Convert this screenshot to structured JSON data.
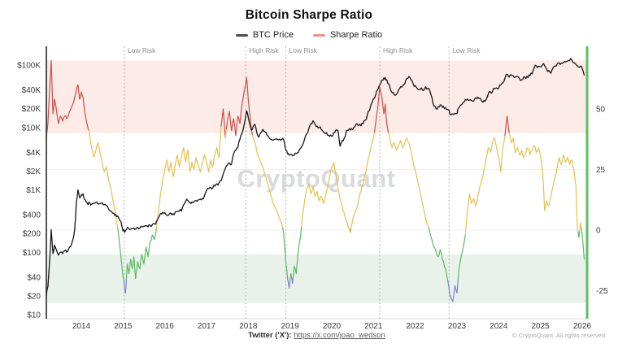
{
  "title": "Bitcoin Sharpe Ratio",
  "legend": {
    "items": [
      {
        "label": "BTC Price",
        "color": "#4d4d4d"
      },
      {
        "label": "Sharpe Ratio",
        "color": "#e8938a"
      }
    ]
  },
  "watermark": "CryptoQuant",
  "footer": {
    "twitter_prefix": "Twitter ('X'):",
    "twitter_link": "https://x.com/joao_wedson",
    "copyright": "© CryptoQuant. All rights reserved"
  },
  "chart_data": {
    "type": "line",
    "title": "Bitcoin Sharpe Ratio",
    "x_axis": {
      "ticks": [
        2014,
        2015,
        2016,
        2017,
        2018,
        2019,
        2020,
        2021,
        2022,
        2023,
        2024,
        2025,
        2026
      ],
      "range": [
        2013.16,
        2026.13
      ]
    },
    "left_axis": {
      "name": "BTC Price (USD, log scale)",
      "ticks": [
        {
          "label": "$100K",
          "value": 100000
        },
        {
          "label": "$40K",
          "value": 40000
        },
        {
          "label": "$20K",
          "value": 20000
        },
        {
          "label": "$10K",
          "value": 10000
        },
        {
          "label": "$4K",
          "value": 4000
        },
        {
          "label": "$2K",
          "value": 2000
        },
        {
          "label": "$1K",
          "value": 1000
        },
        {
          "label": "$400",
          "value": 400
        },
        {
          "label": "$200",
          "value": 200
        },
        {
          "label": "$100",
          "value": 100
        },
        {
          "label": "$40",
          "value": 40
        },
        {
          "label": "$20",
          "value": 20
        },
        {
          "label": "$10",
          "value": 10
        }
      ]
    },
    "right_axis": {
      "name": "Sharpe Ratio",
      "ticks": [
        50,
        25,
        0,
        -25
      ],
      "range": [
        -36,
        76
      ]
    },
    "bands": [
      {
        "name": "high-risk-zone",
        "from": 40,
        "to": 70,
        "color": "#fcebe6"
      },
      {
        "name": "low-risk-zone",
        "from": -30,
        "to": -10,
        "color": "#e9f2ea"
      }
    ],
    "annotations": [
      {
        "x": 2015.03,
        "label": "Low Risk"
      },
      {
        "x": 2017.94,
        "label": "High Risk"
      },
      {
        "x": 2018.9,
        "label": "Low Risk"
      },
      {
        "x": 2021.15,
        "label": "High Risk"
      },
      {
        "x": 2022.81,
        "label": "Low Risk"
      }
    ],
    "sharpe_color_rules": {
      "red_above": 40,
      "yellow_above": 0,
      "green_above": -20,
      "red": "#cf4c46",
      "yellow": "#e5c14d",
      "green": "#5cb763",
      "blue": "#7e82d8"
    },
    "series_meta": [
      {
        "name": "BTC Price",
        "axis": "left",
        "scale": "log",
        "color": "#161616"
      },
      {
        "name": "Sharpe Ratio",
        "axis": "right",
        "scale": "linear",
        "color": "multi"
      }
    ],
    "points_format": [
      "year",
      "btc_price_usd",
      "sharpe_ratio"
    ],
    "points": [
      [
        2013.16,
        20,
        36
      ],
      [
        2013.2,
        28,
        44
      ],
      [
        2013.24,
        70,
        58
      ],
      [
        2013.28,
        230,
        70
      ],
      [
        2013.32,
        95,
        48
      ],
      [
        2013.36,
        130,
        54
      ],
      [
        2013.4,
        110,
        50
      ],
      [
        2013.45,
        90,
        44
      ],
      [
        2013.5,
        100,
        47
      ],
      [
        2013.55,
        95,
        45
      ],
      [
        2013.6,
        105,
        47
      ],
      [
        2013.65,
        100,
        46
      ],
      [
        2013.7,
        115,
        48
      ],
      [
        2013.75,
        125,
        50
      ],
      [
        2013.8,
        160,
        52
      ],
      [
        2013.84,
        230,
        55
      ],
      [
        2013.88,
        600,
        58
      ],
      [
        2013.92,
        1000,
        60
      ],
      [
        2013.96,
        750,
        54
      ],
      [
        2014.0,
        830,
        57
      ],
      [
        2014.04,
        860,
        55
      ],
      [
        2014.08,
        700,
        49
      ],
      [
        2014.12,
        630,
        45
      ],
      [
        2014.16,
        580,
        42
      ],
      [
        2014.2,
        620,
        39
      ],
      [
        2014.25,
        590,
        34
      ],
      [
        2014.3,
        610,
        30
      ],
      [
        2014.35,
        630,
        33
      ],
      [
        2014.4,
        590,
        36
      ],
      [
        2014.45,
        600,
        32
      ],
      [
        2014.5,
        620,
        28
      ],
      [
        2014.55,
        580,
        24
      ],
      [
        2014.6,
        560,
        26
      ],
      [
        2014.65,
        500,
        21
      ],
      [
        2014.7,
        460,
        18
      ],
      [
        2014.75,
        420,
        13
      ],
      [
        2014.8,
        390,
        8
      ],
      [
        2014.85,
        370,
        3
      ],
      [
        2014.9,
        350,
        -3
      ],
      [
        2014.95,
        310,
        -11
      ],
      [
        2015.0,
        220,
        -19
      ],
      [
        2015.03,
        215,
        -23
      ],
      [
        2015.06,
        225,
        -26
      ],
      [
        2015.1,
        250,
        -14
      ],
      [
        2015.14,
        240,
        -18
      ],
      [
        2015.18,
        235,
        -12
      ],
      [
        2015.22,
        240,
        -16
      ],
      [
        2015.26,
        245,
        -11
      ],
      [
        2015.3,
        235,
        -20
      ],
      [
        2015.35,
        250,
        -13
      ],
      [
        2015.4,
        245,
        -16
      ],
      [
        2015.45,
        255,
        -10
      ],
      [
        2015.5,
        260,
        -14
      ],
      [
        2015.55,
        265,
        -7
      ],
      [
        2015.6,
        255,
        -11
      ],
      [
        2015.65,
        270,
        -5
      ],
      [
        2015.7,
        275,
        -2
      ],
      [
        2015.75,
        285,
        -4
      ],
      [
        2015.8,
        310,
        1
      ],
      [
        2015.85,
        360,
        8
      ],
      [
        2015.9,
        420,
        15
      ],
      [
        2015.95,
        440,
        21
      ],
      [
        2016.0,
        430,
        25
      ],
      [
        2016.05,
        390,
        29
      ],
      [
        2016.1,
        400,
        24
      ],
      [
        2016.15,
        420,
        28
      ],
      [
        2016.2,
        415,
        22
      ],
      [
        2016.25,
        440,
        27
      ],
      [
        2016.3,
        450,
        31
      ],
      [
        2016.35,
        460,
        26
      ],
      [
        2016.4,
        455,
        30
      ],
      [
        2016.45,
        580,
        34
      ],
      [
        2016.5,
        660,
        28
      ],
      [
        2016.55,
        680,
        33
      ],
      [
        2016.6,
        620,
        24
      ],
      [
        2016.65,
        640,
        28
      ],
      [
        2016.7,
        650,
        25
      ],
      [
        2016.75,
        670,
        30
      ],
      [
        2016.8,
        690,
        27
      ],
      [
        2016.85,
        710,
        24
      ],
      [
        2016.9,
        730,
        28
      ],
      [
        2016.95,
        800,
        31
      ],
      [
        2017.0,
        980,
        28
      ],
      [
        2017.05,
        1050,
        24
      ],
      [
        2017.1,
        1100,
        29
      ],
      [
        2017.15,
        1080,
        26
      ],
      [
        2017.2,
        1150,
        31
      ],
      [
        2017.25,
        1250,
        34
      ],
      [
        2017.3,
        1300,
        30
      ],
      [
        2017.35,
        1400,
        43
      ],
      [
        2017.4,
        1800,
        50
      ],
      [
        2017.45,
        2200,
        38
      ],
      [
        2017.5,
        2500,
        45
      ],
      [
        2017.55,
        2700,
        49
      ],
      [
        2017.6,
        2600,
        41
      ],
      [
        2017.65,
        3800,
        46
      ],
      [
        2017.7,
        4300,
        39
      ],
      [
        2017.75,
        4800,
        47
      ],
      [
        2017.8,
        6500,
        44
      ],
      [
        2017.85,
        8000,
        52
      ],
      [
        2017.9,
        11000,
        57
      ],
      [
        2017.96,
        18500,
        63
      ],
      [
        2018.0,
        14500,
        54
      ],
      [
        2018.04,
        11000,
        47
      ],
      [
        2018.08,
        9000,
        41
      ],
      [
        2018.12,
        10500,
        38
      ],
      [
        2018.16,
        11200,
        36
      ],
      [
        2018.2,
        8500,
        33
      ],
      [
        2018.25,
        7000,
        30
      ],
      [
        2018.3,
        8200,
        28
      ],
      [
        2018.35,
        9300,
        26
      ],
      [
        2018.4,
        8500,
        23
      ],
      [
        2018.45,
        7500,
        20
      ],
      [
        2018.5,
        6800,
        17
      ],
      [
        2018.55,
        6400,
        14
      ],
      [
        2018.6,
        6300,
        11
      ],
      [
        2018.65,
        6500,
        9
      ],
      [
        2018.7,
        6400,
        7
      ],
      [
        2018.75,
        6500,
        5
      ],
      [
        2018.8,
        6400,
        3
      ],
      [
        2018.85,
        6300,
        -2
      ],
      [
        2018.9,
        4300,
        -13
      ],
      [
        2018.94,
        3800,
        -20
      ],
      [
        2018.98,
        3600,
        -24
      ],
      [
        2019.02,
        3700,
        -18
      ],
      [
        2019.06,
        3500,
        -22
      ],
      [
        2019.1,
        3600,
        -15
      ],
      [
        2019.15,
        3800,
        -18
      ],
      [
        2019.2,
        4000,
        -8
      ],
      [
        2019.25,
        4600,
        -3
      ],
      [
        2019.3,
        5200,
        6
      ],
      [
        2019.35,
        6500,
        12
      ],
      [
        2019.4,
        7900,
        17
      ],
      [
        2019.45,
        9500,
        19
      ],
      [
        2019.5,
        11500,
        15
      ],
      [
        2019.55,
        12800,
        18
      ],
      [
        2019.6,
        11200,
        14
      ],
      [
        2019.65,
        10500,
        16
      ],
      [
        2019.7,
        10000,
        12
      ],
      [
        2019.75,
        9200,
        14
      ],
      [
        2019.8,
        8500,
        11
      ],
      [
        2019.85,
        8000,
        14
      ],
      [
        2019.9,
        7500,
        17
      ],
      [
        2019.95,
        7200,
        22
      ],
      [
        2020.0,
        7200,
        26
      ],
      [
        2020.05,
        8300,
        28
      ],
      [
        2020.1,
        9100,
        23
      ],
      [
        2020.15,
        8800,
        17
      ],
      [
        2020.2,
        5000,
        13
      ],
      [
        2020.25,
        6200,
        10
      ],
      [
        2020.3,
        6800,
        7
      ],
      [
        2020.35,
        8800,
        4
      ],
      [
        2020.4,
        9000,
        1
      ],
      [
        2020.45,
        9100,
        -1
      ],
      [
        2020.5,
        9200,
        4
      ],
      [
        2020.55,
        10200,
        7
      ],
      [
        2020.6,
        11500,
        9
      ],
      [
        2020.65,
        10800,
        13
      ],
      [
        2020.7,
        10600,
        16
      ],
      [
        2020.75,
        11500,
        19
      ],
      [
        2020.8,
        13000,
        23
      ],
      [
        2020.85,
        15500,
        27
      ],
      [
        2020.9,
        18500,
        31
      ],
      [
        2020.95,
        24000,
        35
      ],
      [
        2021.0,
        29000,
        38
      ],
      [
        2021.05,
        33000,
        44
      ],
      [
        2021.1,
        40000,
        50
      ],
      [
        2021.15,
        48000,
        59
      ],
      [
        2021.2,
        57000,
        55
      ],
      [
        2021.25,
        62000,
        48
      ],
      [
        2021.28,
        63000,
        52
      ],
      [
        2021.32,
        58000,
        44
      ],
      [
        2021.36,
        50000,
        40
      ],
      [
        2021.4,
        42000,
        37
      ],
      [
        2021.45,
        36000,
        34
      ],
      [
        2021.5,
        33000,
        36
      ],
      [
        2021.55,
        34000,
        33
      ],
      [
        2021.6,
        40000,
        35
      ],
      [
        2021.65,
        45000,
        37
      ],
      [
        2021.7,
        47000,
        34
      ],
      [
        2021.75,
        50000,
        36
      ],
      [
        2021.8,
        61000,
        38
      ],
      [
        2021.85,
        66000,
        36
      ],
      [
        2021.9,
        58000,
        32
      ],
      [
        2021.95,
        50000,
        28
      ],
      [
        2022.0,
        47000,
        25
      ],
      [
        2022.05,
        42000,
        21
      ],
      [
        2022.1,
        40000,
        17
      ],
      [
        2022.15,
        43000,
        13
      ],
      [
        2022.2,
        39000,
        9
      ],
      [
        2022.25,
        45000,
        5
      ],
      [
        2022.3,
        42000,
        2
      ],
      [
        2022.35,
        39000,
        -1
      ],
      [
        2022.4,
        30000,
        -4
      ],
      [
        2022.45,
        22000,
        -7
      ],
      [
        2022.5,
        20000,
        -9
      ],
      [
        2022.55,
        21500,
        -11
      ],
      [
        2022.6,
        23000,
        -8
      ],
      [
        2022.65,
        21000,
        -12
      ],
      [
        2022.7,
        20000,
        -15
      ],
      [
        2022.75,
        19500,
        -18
      ],
      [
        2022.81,
        19000,
        -24
      ],
      [
        2022.85,
        16000,
        -28
      ],
      [
        2022.9,
        16500,
        -29.5
      ],
      [
        2022.95,
        16800,
        -23
      ],
      [
        2023.0,
        16800,
        -26
      ],
      [
        2023.05,
        21000,
        -16
      ],
      [
        2023.1,
        23000,
        -11
      ],
      [
        2023.15,
        25000,
        -7
      ],
      [
        2023.2,
        28000,
        -2
      ],
      [
        2023.25,
        28500,
        8
      ],
      [
        2023.3,
        27500,
        15
      ],
      [
        2023.35,
        27000,
        11
      ],
      [
        2023.4,
        26500,
        13
      ],
      [
        2023.45,
        30000,
        10
      ],
      [
        2023.5,
        30500,
        14
      ],
      [
        2023.55,
        29500,
        18
      ],
      [
        2023.6,
        26000,
        21
      ],
      [
        2023.65,
        27000,
        25
      ],
      [
        2023.7,
        28000,
        30
      ],
      [
        2023.75,
        34500,
        34
      ],
      [
        2023.8,
        37000,
        32
      ],
      [
        2023.85,
        37500,
        36
      ],
      [
        2023.9,
        42000,
        38
      ],
      [
        2023.95,
        43000,
        34
      ],
      [
        2024.0,
        42500,
        30
      ],
      [
        2024.05,
        48000,
        24
      ],
      [
        2024.1,
        52000,
        34
      ],
      [
        2024.15,
        62000,
        39
      ],
      [
        2024.2,
        71000,
        47
      ],
      [
        2024.25,
        64000,
        40
      ],
      [
        2024.3,
        70000,
        36
      ],
      [
        2024.35,
        67000,
        38
      ],
      [
        2024.4,
        64000,
        32
      ],
      [
        2024.45,
        66000,
        34
      ],
      [
        2024.5,
        60000,
        31
      ],
      [
        2024.55,
        58000,
        33
      ],
      [
        2024.6,
        65000,
        30
      ],
      [
        2024.65,
        61000,
        32
      ],
      [
        2024.7,
        63000,
        34
      ],
      [
        2024.75,
        68000,
        31
      ],
      [
        2024.8,
        72000,
        33
      ],
      [
        2024.85,
        90000,
        35
      ],
      [
        2024.9,
        97000,
        32
      ],
      [
        2024.95,
        95000,
        34
      ],
      [
        2025.0,
        94000,
        31
      ],
      [
        2025.05,
        102000,
        25
      ],
      [
        2025.1,
        97000,
        8
      ],
      [
        2025.15,
        85000,
        12
      ],
      [
        2025.2,
        82000,
        10
      ],
      [
        2025.25,
        74000,
        14
      ],
      [
        2025.3,
        90000,
        18
      ],
      [
        2025.35,
        97000,
        22
      ],
      [
        2025.4,
        104000,
        26
      ],
      [
        2025.45,
        108000,
        30
      ],
      [
        2025.5,
        107000,
        27
      ],
      [
        2025.55,
        110000,
        31
      ],
      [
        2025.6,
        112000,
        28
      ],
      [
        2025.65,
        116000,
        30
      ],
      [
        2025.7,
        118000,
        27
      ],
      [
        2025.75,
        122000,
        29
      ],
      [
        2025.8,
        110000,
        25
      ],
      [
        2025.85,
        103000,
        18
      ],
      [
        2025.88,
        98000,
        2
      ],
      [
        2025.92,
        93000,
        -3
      ],
      [
        2025.96,
        96000,
        3
      ],
      [
        2026.0,
        88000,
        -2
      ],
      [
        2026.05,
        68000,
        -12
      ]
    ]
  }
}
